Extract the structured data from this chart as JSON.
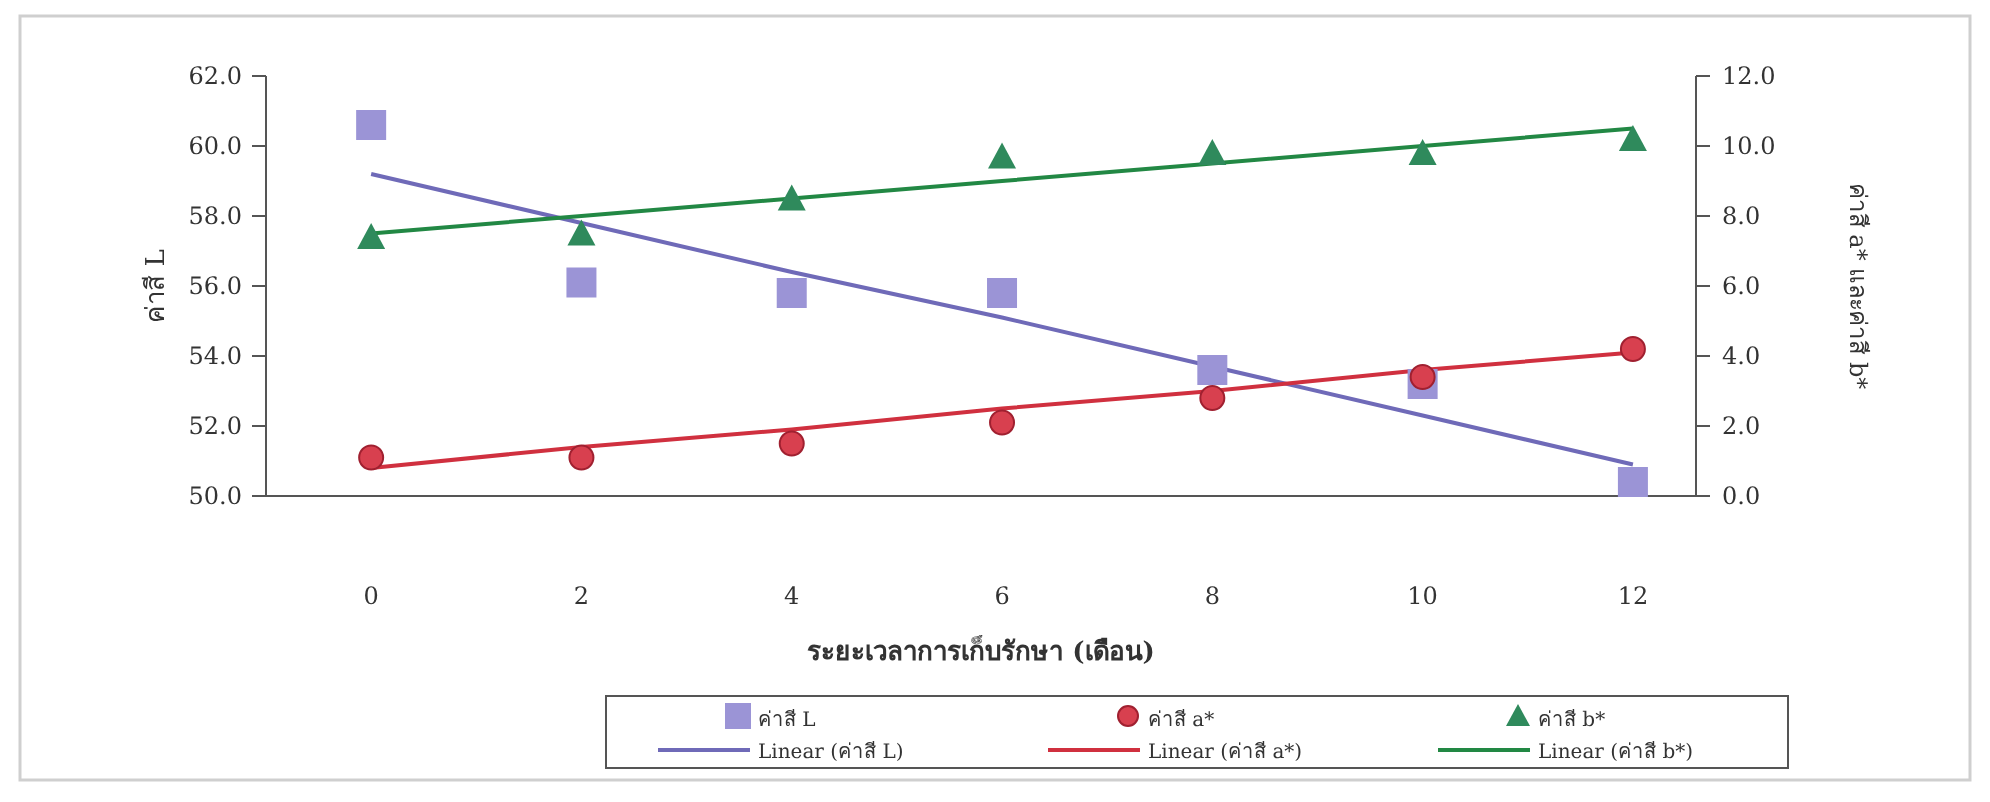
{
  "chart_data": {
    "type": "scatter",
    "xlabel": "ระยะเวลาการเก็บรักษา (เดือน)",
    "ylabel": "ค่าสี L",
    "y2label": "ค่าสี a* และค่าสี b*",
    "x": [
      0,
      2,
      4,
      6,
      8,
      10,
      12
    ],
    "xlim": [
      -1,
      12.6
    ],
    "xticks": [
      0,
      2,
      4,
      6,
      8,
      10,
      12
    ],
    "ylim": [
      50,
      62
    ],
    "yticks": [
      {
        "value": 50,
        "label": "50.0"
      },
      {
        "value": 52,
        "label": "52.0"
      },
      {
        "value": 54,
        "label": "54.0"
      },
      {
        "value": 56,
        "label": "56.0"
      },
      {
        "value": 58,
        "label": "58.0"
      },
      {
        "value": 60,
        "label": "60.0"
      },
      {
        "value": 62,
        "label": "62.0"
      }
    ],
    "y2lim": [
      0,
      12
    ],
    "y2ticks": [
      {
        "value": 0,
        "label": "0.0"
      },
      {
        "value": 2,
        "label": "2.0"
      },
      {
        "value": 4,
        "label": "4.0"
      },
      {
        "value": 6,
        "label": "6.0"
      },
      {
        "value": 8,
        "label": "8.0"
      },
      {
        "value": 10,
        "label": "10.0"
      },
      {
        "value": 12,
        "label": "12.0"
      }
    ],
    "grid": false,
    "legend": "bottom",
    "series": [
      {
        "name": "ค่าสี L",
        "marker": "square",
        "color": "#9b94d6",
        "values": [
          60.6,
          56.1,
          55.8,
          55.8,
          53.6,
          53.2,
          50.4
        ]
      },
      {
        "name": "Linear (ค่าสี L)",
        "type": "line",
        "marker": "none",
        "color": "#6f6ab8",
        "values": [
          59.2,
          57.8,
          56.4,
          55.1,
          53.7,
          52.3,
          50.9
        ]
      },
      {
        "name": "ค่าสี a*",
        "marker": "circle",
        "axis": "y2",
        "color": "#d8404f",
        "values": [
          1.1,
          1.1,
          1.5,
          2.1,
          2.8,
          3.4,
          4.2
        ]
      },
      {
        "name": "Linear (ค่าสี a*)",
        "type": "line",
        "marker": "none",
        "axis": "y2",
        "color": "#d0303f",
        "values": [
          0.8,
          1.4,
          1.9,
          2.5,
          3.0,
          3.6,
          4.1
        ]
      },
      {
        "name": "ค่าสี b*",
        "marker": "triangle",
        "axis": "y2",
        "color": "#2f8a5c",
        "values": [
          7.4,
          7.5,
          8.5,
          9.7,
          9.8,
          9.8,
          10.2
        ]
      },
      {
        "name": "Linear (ค่าสี b*)",
        "type": "line",
        "marker": "none",
        "axis": "y2",
        "color": "#228844",
        "values": [
          7.5,
          8.0,
          8.5,
          9.0,
          9.5,
          10.0,
          10.5
        ]
      }
    ]
  }
}
